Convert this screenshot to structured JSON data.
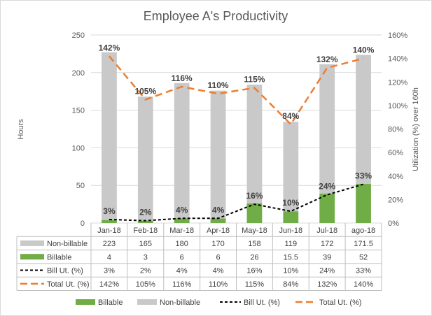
{
  "chart_data": {
    "type": "bar",
    "title": "Employee A's Productivity",
    "categories": [
      "Jan-18",
      "Feb-18",
      "Mar-18",
      "Apr-18",
      "May-18",
      "Jun-18",
      "Jul-18",
      "ago-18"
    ],
    "y_left": {
      "label": "Hours",
      "min": 0,
      "max": 250,
      "ticks": [
        "0",
        "50",
        "100",
        "150",
        "200",
        "250"
      ]
    },
    "y_right": {
      "label": "Utilization (%) over 160h",
      "min": 0,
      "max": 160,
      "ticks": [
        "0%",
        "20%",
        "40%",
        "60%",
        "80%",
        "100%",
        "120%",
        "140%",
        "160%"
      ]
    },
    "series": [
      {
        "name": "Non-billable",
        "type": "stacked-bar",
        "axis": "left",
        "color": "#c9c9c9",
        "legend_label": "Non-billable",
        "table_label": "Non-billable",
        "values": [
          223,
          165,
          180,
          170,
          158,
          119,
          172,
          171.5
        ],
        "table_values": [
          "223",
          "165",
          "180",
          "170",
          "158",
          "119",
          "172",
          "171.5"
        ]
      },
      {
        "name": "Billable",
        "type": "stacked-bar",
        "axis": "left",
        "color": "#70ad47",
        "legend_label": "Billable",
        "table_label": "Billable",
        "values": [
          4,
          3,
          6,
          6,
          26,
          15.5,
          39,
          52
        ],
        "table_values": [
          "4",
          "3",
          "6",
          "6",
          "26",
          "15.5",
          "39",
          "52"
        ]
      },
      {
        "name": "Bill Ut. (%)",
        "type": "line",
        "axis": "right",
        "color": "#000000",
        "dash": "dashed",
        "legend_label": "Bill Ut. (%)",
        "table_label": "Bill Ut. (%)",
        "values": [
          3,
          2,
          4,
          4,
          16,
          10,
          24,
          33
        ],
        "labels": [
          "3%",
          "2%",
          "4%",
          "4%",
          "16%",
          "10%",
          "24%",
          "33%"
        ],
        "table_values": [
          "3%",
          "2%",
          "4%",
          "4%",
          "16%",
          "10%",
          "24%",
          "33%"
        ]
      },
      {
        "name": "Total Ut. (%)",
        "type": "line",
        "axis": "right",
        "color": "#ed7d31",
        "dash": "long-dashed",
        "legend_label": "Total Ut. (%)",
        "table_label": "Total Ut. (%)",
        "values": [
          142,
          105,
          116,
          110,
          115,
          84,
          132,
          140
        ],
        "labels": [
          "142%",
          "105%",
          "116%",
          "110%",
          "115%",
          "84%",
          "132%",
          "140%"
        ],
        "table_values": [
          "142%",
          "105%",
          "116%",
          "110%",
          "115%",
          "84%",
          "132%",
          "140%"
        ]
      }
    ],
    "legend_position": "bottom",
    "data_table": true,
    "grid": true
  }
}
